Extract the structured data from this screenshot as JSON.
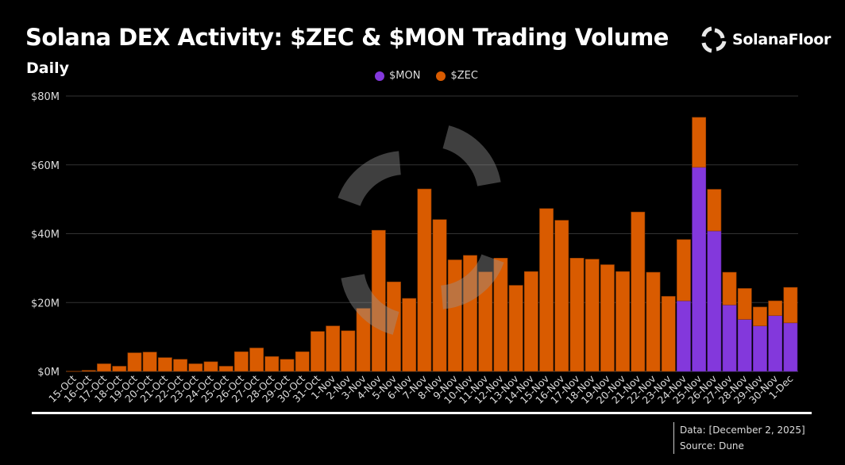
{
  "header": {
    "title": "Solana DEX Activity: $ZEC & $MON Trading Volume",
    "subtitle": "Daily",
    "brand": "SolanaFloor"
  },
  "footer": {
    "data_line": "Data: [December 2, 2025]",
    "source_line": "Source: Dune"
  },
  "chart_data": {
    "type": "bar",
    "stacked": true,
    "title": "Solana DEX Activity: $ZEC & $MON Trading Volume",
    "subtitle": "Daily",
    "xlabel": "",
    "ylabel": "",
    "ylim": [
      0,
      80
    ],
    "y_ticks": [
      0,
      20,
      40,
      60,
      80
    ],
    "y_tick_labels": [
      "$0M",
      "$20M",
      "$40M",
      "$60M",
      "$80M"
    ],
    "grid": true,
    "legend_position": "top-center",
    "categories": [
      "15-Oct",
      "16-Oct",
      "17-Oct",
      "18-Oct",
      "19-Oct",
      "20-Oct",
      "21-Oct",
      "22-Oct",
      "23-Oct",
      "24-Oct",
      "25-Oct",
      "26-Oct",
      "27-Oct",
      "28-Oct",
      "29-Oct",
      "30-Oct",
      "31-Oct",
      "1-Nov",
      "2-Nov",
      "3-Nov",
      "4-Nov",
      "5-Nov",
      "6-Nov",
      "7-Nov",
      "8-Nov",
      "9-Nov",
      "10-Nov",
      "11-Nov",
      "12-Nov",
      "13-Nov",
      "14-Nov",
      "15-Nov",
      "16-Nov",
      "17-Nov",
      "18-Nov",
      "19-Nov",
      "20-Nov",
      "21-Nov",
      "22-Nov",
      "23-Nov",
      "24-Nov",
      "25-Nov",
      "26-Nov",
      "27-Nov",
      "28-Nov",
      "29-Nov",
      "30-Nov",
      "1-Dec"
    ],
    "series": [
      {
        "name": "$MON",
        "color": "#8338dc",
        "values": [
          0,
          0,
          0,
          0,
          0,
          0,
          0,
          0,
          0,
          0,
          0,
          0,
          0,
          0,
          0,
          0,
          0,
          0,
          0,
          0,
          0,
          0,
          0,
          0,
          0,
          0,
          0,
          0,
          0,
          0,
          0,
          0,
          0,
          0,
          0,
          0,
          0,
          0,
          0,
          0,
          20.5,
          59.3,
          40.8,
          19.3,
          15.1,
          13.2,
          16.2,
          14.1
        ]
      },
      {
        "name": "$ZEC",
        "color": "#d95b00",
        "values": [
          0.05,
          0.3,
          2.2,
          1.5,
          5.4,
          5.6,
          4.0,
          3.5,
          2.2,
          2.8,
          1.5,
          5.7,
          6.8,
          4.3,
          3.5,
          5.7,
          11.6,
          13.2,
          11.8,
          18.3,
          41.0,
          26.0,
          21.2,
          53.0,
          44.1,
          32.4,
          33.7,
          28.9,
          32.9,
          25.0,
          29.0,
          47.3,
          43.9,
          32.9,
          32.6,
          31.0,
          29.0,
          46.3,
          28.8,
          21.8,
          17.8,
          14.5,
          12.1,
          9.5,
          9.0,
          5.5,
          4.3,
          10.3
        ]
      }
    ]
  }
}
